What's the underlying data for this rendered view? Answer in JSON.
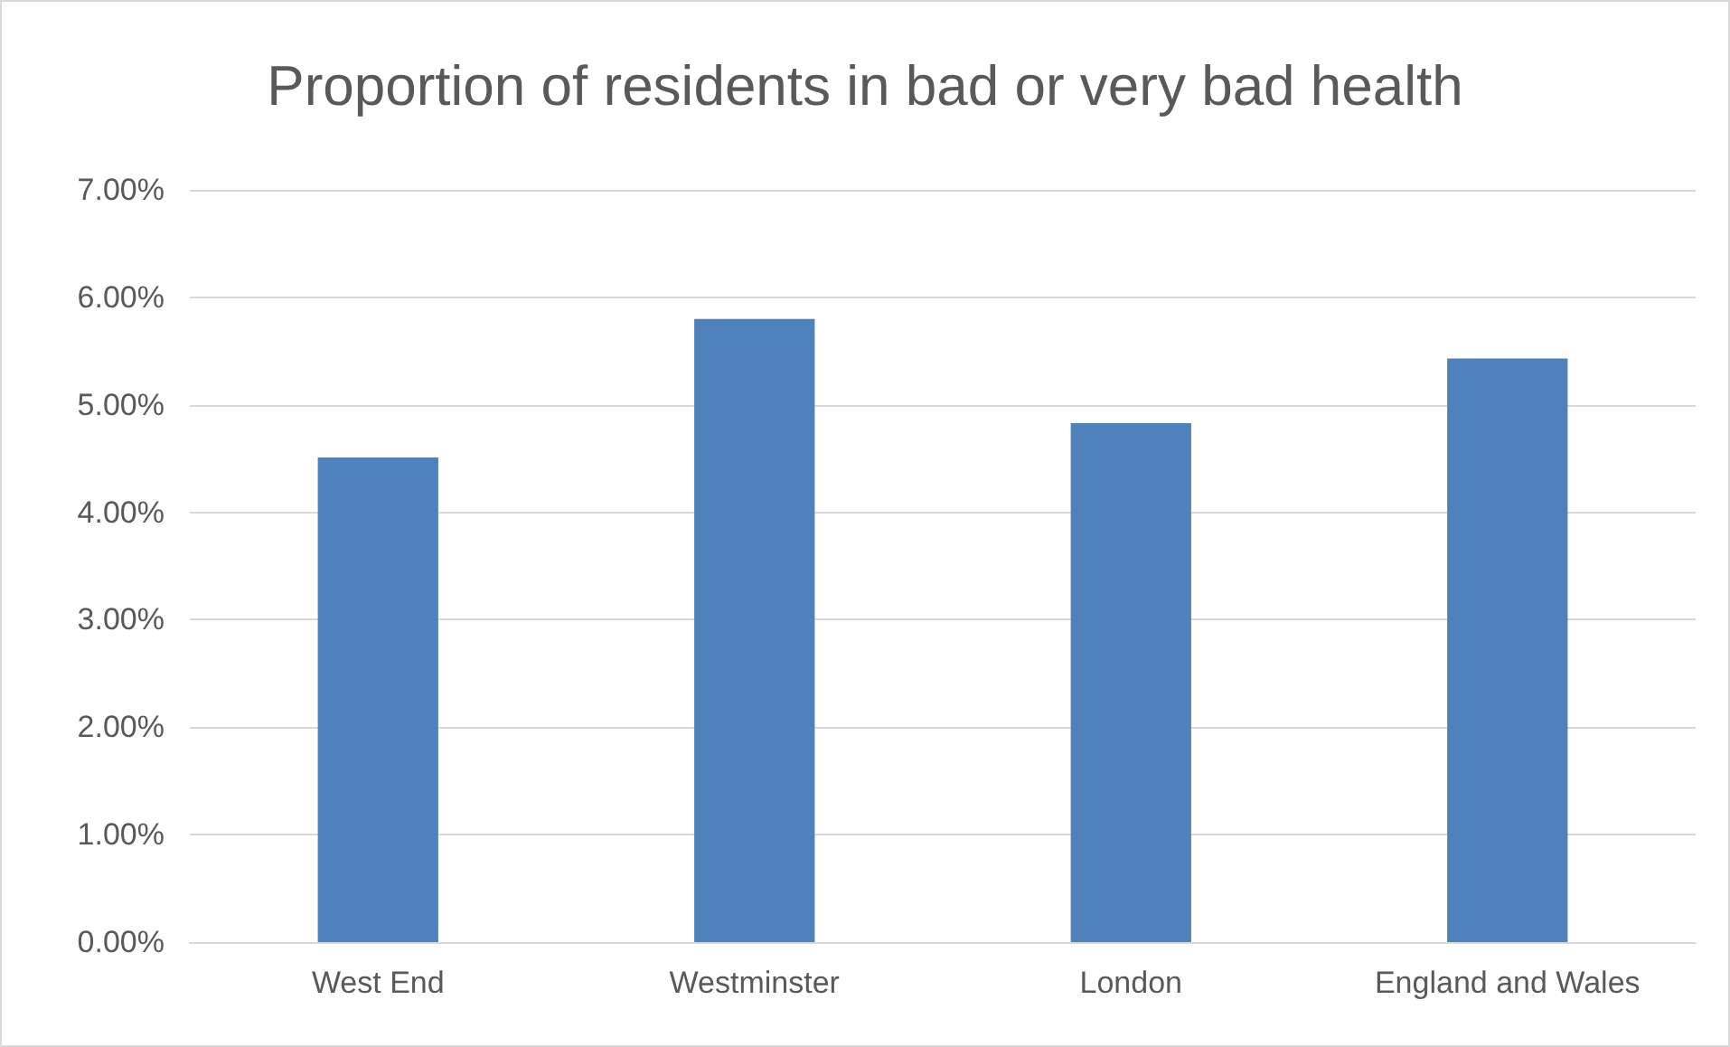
{
  "chart_data": {
    "type": "bar",
    "title": "Proportion of residents in bad or very bad health",
    "categories": [
      "West End",
      "Westminster",
      "London",
      "England and Wales"
    ],
    "values": [
      4.51,
      5.8,
      4.83,
      5.43
    ],
    "color": "#4f81bd",
    "ylim": [
      0,
      7
    ],
    "yticks": [
      {
        "value": 0,
        "label": "0.00%"
      },
      {
        "value": 1,
        "label": "1.00%"
      },
      {
        "value": 2,
        "label": "2.00%"
      },
      {
        "value": 3,
        "label": "3.00%"
      },
      {
        "value": 4,
        "label": "4.00%"
      },
      {
        "value": 5,
        "label": "5.00%"
      },
      {
        "value": 6,
        "label": "6.00%"
      },
      {
        "value": 7,
        "label": "7.00%"
      }
    ],
    "grid": true
  }
}
